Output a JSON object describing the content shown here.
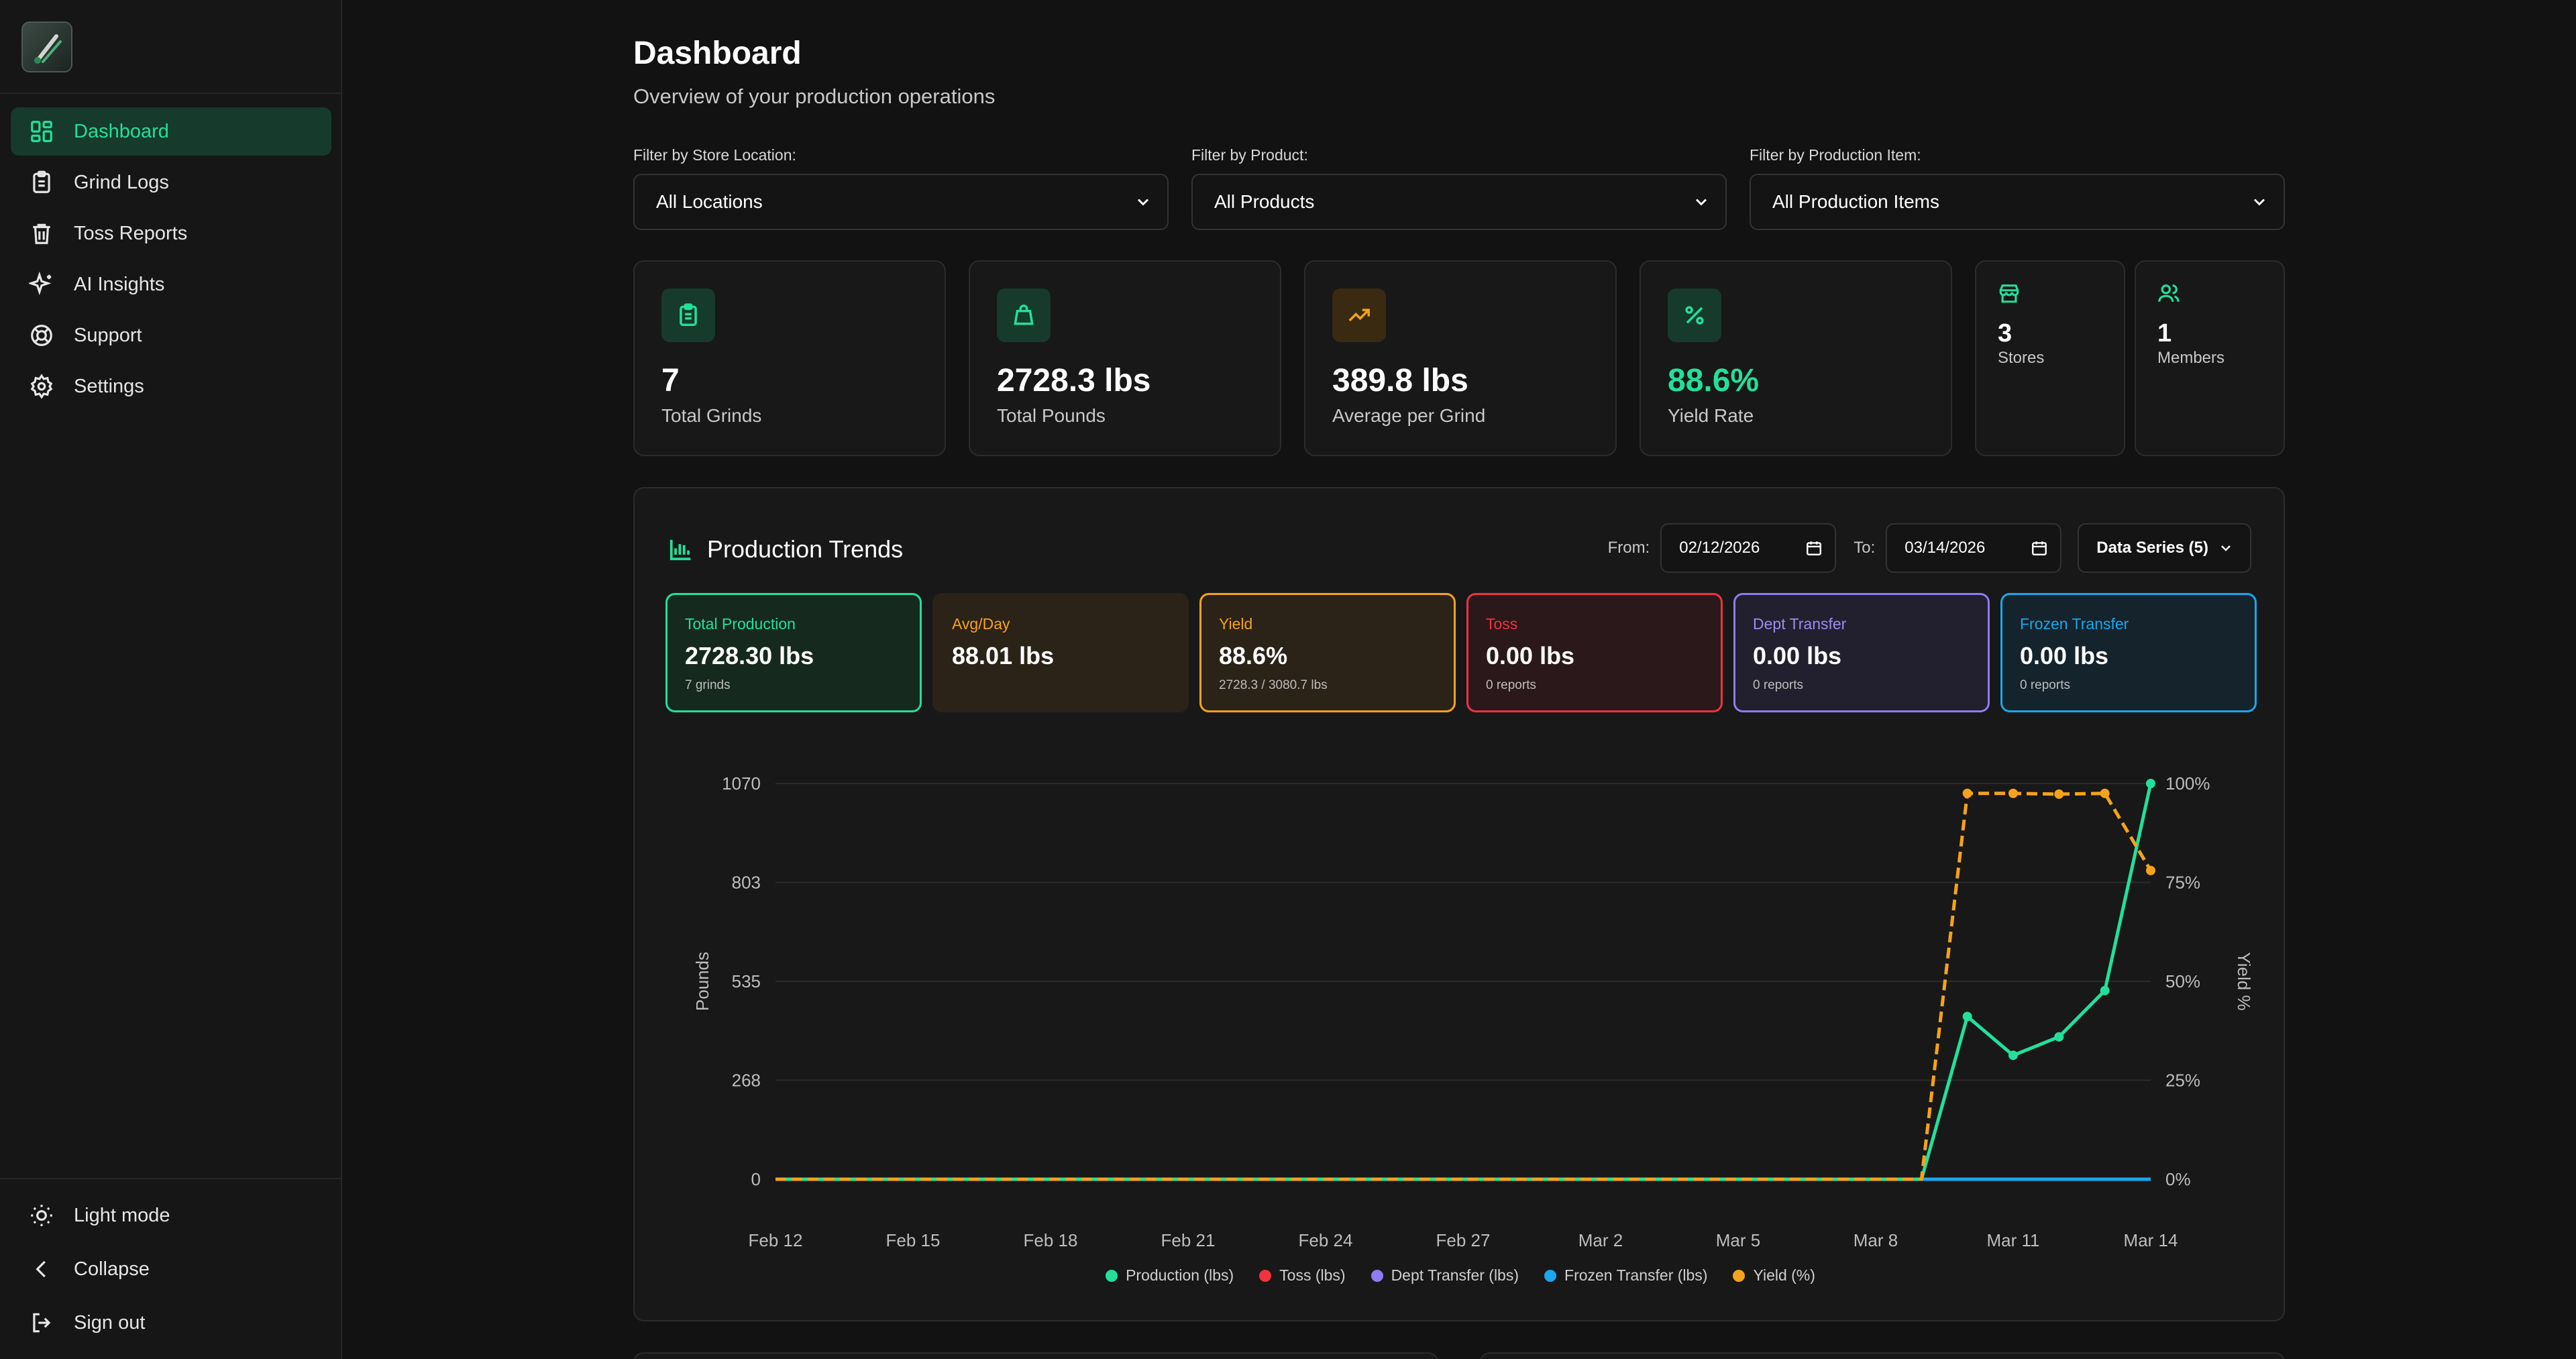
{
  "colors": {
    "accent": "#22e09a",
    "production": "#22e09a",
    "toss": "#ef3340",
    "dept_transfer": "#8f7cf2",
    "frozen_transfer": "#1aa7ec",
    "yield": "#f5a31a"
  },
  "sidebar": {
    "logo_icon": "app-logo",
    "items": [
      {
        "label": "Dashboard",
        "icon": "dashboard-icon",
        "active": true
      },
      {
        "label": "Grind Logs",
        "icon": "clipboard-icon"
      },
      {
        "label": "Toss Reports",
        "icon": "trash-icon"
      },
      {
        "label": "AI Insights",
        "icon": "sparkles-icon"
      },
      {
        "label": "Support",
        "icon": "lifebuoy-icon"
      },
      {
        "label": "Settings",
        "icon": "gear-icon"
      }
    ],
    "bottom": [
      {
        "label": "Light mode",
        "icon": "sun-icon"
      },
      {
        "label": "Collapse",
        "icon": "chevron-left-icon"
      },
      {
        "label": "Sign out",
        "icon": "sign-out-icon"
      }
    ]
  },
  "header": {
    "title": "Dashboard",
    "subtitle": "Overview of your production operations"
  },
  "filters": [
    {
      "label": "Filter by Store Location:",
      "value": "All Locations"
    },
    {
      "label": "Filter by Product:",
      "value": "All Products"
    },
    {
      "label": "Filter by Production Item:",
      "value": "All Production Items"
    }
  ],
  "stats": [
    {
      "value": "7",
      "label": "Total Grinds",
      "icon": "clipboard-icon"
    },
    {
      "value": "2728.3 lbs",
      "label": "Total Pounds",
      "icon": "bag-icon"
    },
    {
      "value": "389.8 lbs",
      "label": "Average per Grind",
      "icon": "trending-up-icon"
    },
    {
      "value": "88.6%",
      "label": "Yield Rate",
      "icon": "percent-icon"
    },
    {
      "value": "3",
      "label": "Stores",
      "icon": "store-icon"
    },
    {
      "value": "1",
      "label": "Members",
      "icon": "users-icon"
    }
  ],
  "trends": {
    "title": "Production Trends",
    "from_label": "From:",
    "from_value": "02/12/2026",
    "to_label": "To:",
    "to_value": "03/14/2026",
    "series_button": "Data Series (5)",
    "kpis": [
      {
        "label": "Total Production",
        "value": "2728.30 lbs",
        "sub": "7 grinds"
      },
      {
        "label": "Avg/Day",
        "value": "88.01 lbs",
        "sub": ""
      },
      {
        "label": "Yield",
        "value": "88.6%",
        "sub": "2728.3 / 3080.7 lbs"
      },
      {
        "label": "Toss",
        "value": "0.00 lbs",
        "sub": "0 reports"
      },
      {
        "label": "Dept Transfer",
        "value": "0.00 lbs",
        "sub": "0 reports"
      },
      {
        "label": "Frozen Transfer",
        "value": "0.00 lbs",
        "sub": "0 reports"
      }
    ]
  },
  "chart_data": {
    "type": "line",
    "x": [
      "Feb 12",
      "Feb 13",
      "Feb 14",
      "Feb 15",
      "Feb 16",
      "Feb 17",
      "Feb 18",
      "Feb 19",
      "Feb 20",
      "Feb 21",
      "Feb 22",
      "Feb 23",
      "Feb 24",
      "Feb 25",
      "Feb 26",
      "Feb 27",
      "Feb 28",
      "Mar 1",
      "Mar 2",
      "Mar 3",
      "Mar 4",
      "Mar 5",
      "Mar 6",
      "Mar 7",
      "Mar 8",
      "Mar 9",
      "Mar 10",
      "Mar 11",
      "Mar 12",
      "Mar 13",
      "Mar 14"
    ],
    "x_ticks": [
      "Feb 12",
      "Feb 15",
      "Feb 18",
      "Feb 21",
      "Feb 24",
      "Feb 27",
      "Mar 2",
      "Mar 5",
      "Mar 8",
      "Mar 11",
      "Mar 14"
    ],
    "ylabel": "Pounds",
    "ylabel_right": "Yield %",
    "y_ticks": [
      "0",
      "268",
      "535",
      "803",
      "1070"
    ],
    "y_right_ticks": [
      "0%",
      "25%",
      "50%",
      "75%",
      "100%"
    ],
    "ylim": [
      0,
      1070
    ],
    "ylim_right": [
      0,
      100
    ],
    "grid": true,
    "legend_position": "bottom",
    "series": [
      {
        "name": "Production (lbs)",
        "axis": "left",
        "values": [
          0,
          0,
          0,
          0,
          0,
          0,
          0,
          0,
          0,
          0,
          0,
          0,
          0,
          0,
          0,
          0,
          0,
          0,
          0,
          0,
          0,
          0,
          0,
          0,
          0,
          0,
          440,
          335,
          385,
          510,
          1070
        ]
      },
      {
        "name": "Toss (lbs)",
        "axis": "left",
        "values": [
          0,
          0,
          0,
          0,
          0,
          0,
          0,
          0,
          0,
          0,
          0,
          0,
          0,
          0,
          0,
          0,
          0,
          0,
          0,
          0,
          0,
          0,
          0,
          0,
          0,
          0,
          0,
          0,
          0,
          0,
          0
        ]
      },
      {
        "name": "Dept Transfer (lbs)",
        "axis": "left",
        "values": [
          0,
          0,
          0,
          0,
          0,
          0,
          0,
          0,
          0,
          0,
          0,
          0,
          0,
          0,
          0,
          0,
          0,
          0,
          0,
          0,
          0,
          0,
          0,
          0,
          0,
          0,
          0,
          0,
          0,
          0,
          0
        ]
      },
      {
        "name": "Frozen Transfer (lbs)",
        "axis": "left",
        "values": [
          0,
          0,
          0,
          0,
          0,
          0,
          0,
          0,
          0,
          0,
          0,
          0,
          0,
          0,
          0,
          0,
          0,
          0,
          0,
          0,
          0,
          0,
          0,
          0,
          0,
          0,
          0,
          0,
          0,
          0,
          0
        ]
      },
      {
        "name": "Yield (%)",
        "axis": "right",
        "values": [
          0,
          0,
          0,
          0,
          0,
          0,
          0,
          0,
          0,
          0,
          0,
          0,
          0,
          0,
          0,
          0,
          0,
          0,
          0,
          0,
          0,
          0,
          0,
          0,
          0,
          0,
          97.5,
          97.5,
          97.3,
          97.5,
          78
        ]
      }
    ]
  }
}
